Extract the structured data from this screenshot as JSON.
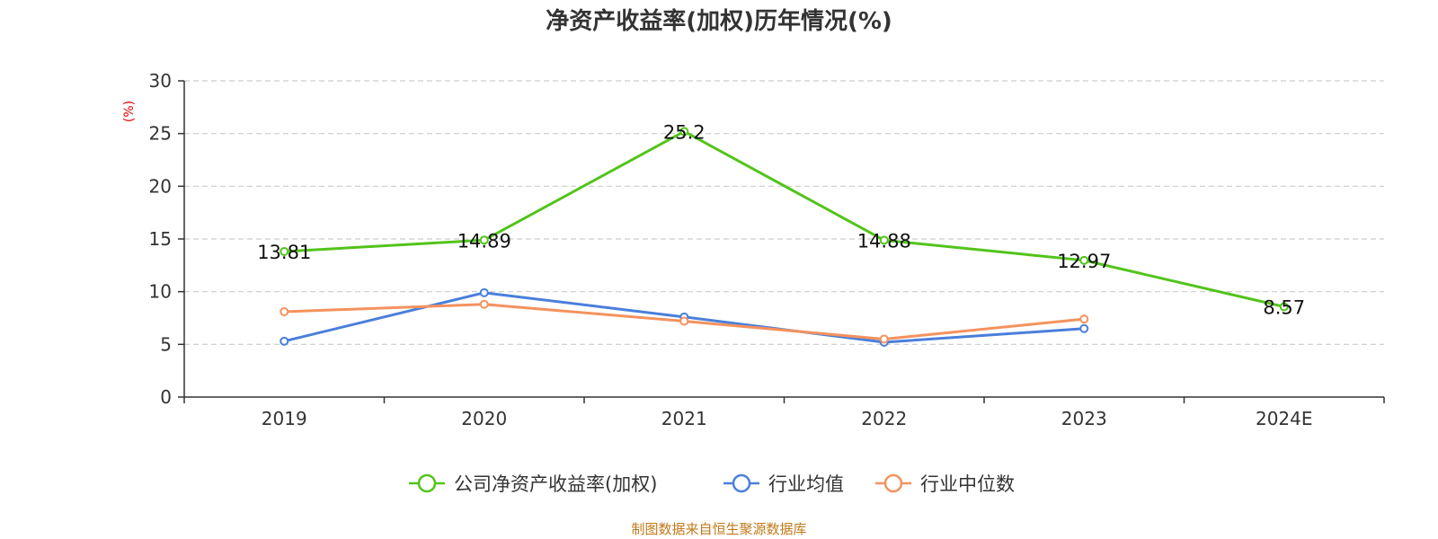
{
  "chart_data": {
    "type": "line",
    "title": "净资产收益率(加权)历年情况(%)",
    "ylabel": "(%)",
    "categories": [
      "2019",
      "2020",
      "2021",
      "2022",
      "2023",
      "2024E"
    ],
    "ylim": [
      0,
      30
    ],
    "yticks": [
      0,
      5,
      10,
      15,
      20,
      25,
      30
    ],
    "grid": true,
    "legend_position": "bottom",
    "series": [
      {
        "name": "公司净资产收益率(加权)",
        "color": "#52c41a",
        "values": [
          13.81,
          14.89,
          25.2,
          14.88,
          12.97,
          8.57
        ],
        "labels": [
          "13.81",
          "14.89",
          "25.2",
          "14.88",
          "12.97",
          "8.57"
        ]
      },
      {
        "name": "行业均值",
        "color": "#4a7fdb",
        "values": [
          5.3,
          9.9,
          7.6,
          5.2,
          6.5,
          null
        ]
      },
      {
        "name": "行业中位数",
        "color": "#f4925e",
        "values": [
          8.1,
          8.8,
          7.2,
          5.5,
          7.4,
          null
        ]
      }
    ],
    "source": "制图数据来自恒生聚源数据库"
  }
}
